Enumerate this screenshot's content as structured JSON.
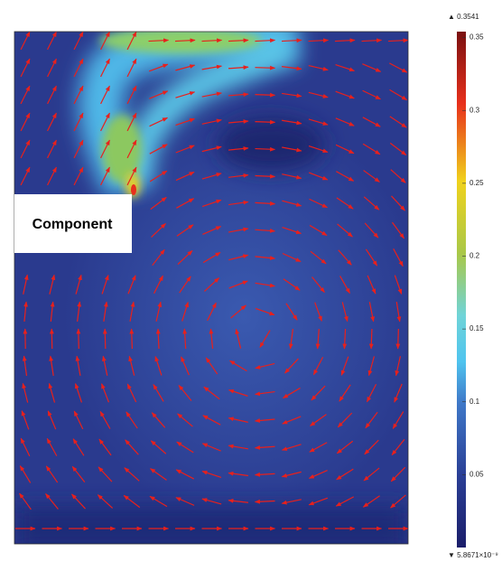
{
  "chart_data": {
    "type": "field",
    "annotation": "Component",
    "colorbar": {
      "ylim": [
        5.8671e-09,
        0.3541
      ],
      "yticks": [
        0.05,
        0.1,
        0.15,
        0.2,
        0.25,
        0.3,
        0.35
      ],
      "max_label": {
        "value": 0.3541,
        "label": "▲ 0.3541"
      },
      "min_label": {
        "value": 5.8671e-09,
        "label": "▼ 5.8671×10⁻⁹"
      }
    },
    "arrow_color": "#e8201c"
  }
}
